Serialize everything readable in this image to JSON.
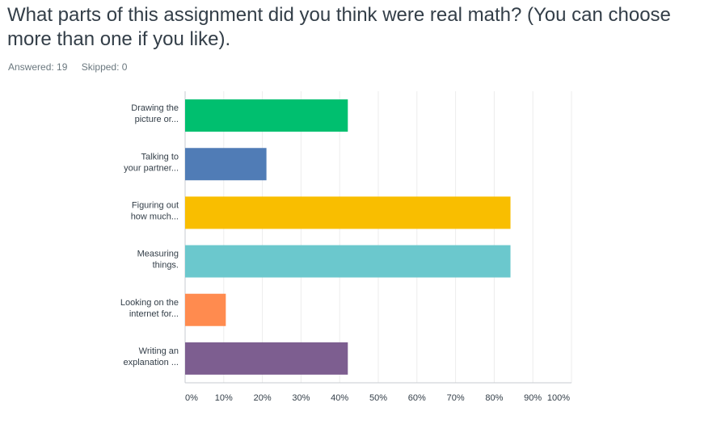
{
  "question": {
    "title": "What parts of this assignment did you think were real math? (You can choose more than one if you like).",
    "answered_label": "Answered: 19",
    "skipped_label": "Skipped: 0"
  },
  "chart_data": {
    "type": "bar",
    "orientation": "horizontal",
    "categories": [
      [
        "Drawing the",
        "picture or..."
      ],
      [
        "Talking to",
        "your partner..."
      ],
      [
        "Figuring out",
        "how much..."
      ],
      [
        "Measuring",
        "things."
      ],
      [
        "Looking on the",
        "internet for..."
      ],
      [
        "Writing an",
        "explanation ..."
      ]
    ],
    "values": [
      42.11,
      21.05,
      84.21,
      84.21,
      10.53,
      42.11
    ],
    "colors": [
      "#00bf6f",
      "#507cb6",
      "#f9be00",
      "#6bc8cd",
      "#ff8b4f",
      "#7d5e90"
    ],
    "xlim": [
      0,
      100
    ],
    "xticks": [
      "0%",
      "10%",
      "20%",
      "30%",
      "40%",
      "50%",
      "60%",
      "70%",
      "80%",
      "90%",
      "100%"
    ],
    "grid": true,
    "title": "",
    "xlabel": "",
    "ylabel": ""
  }
}
